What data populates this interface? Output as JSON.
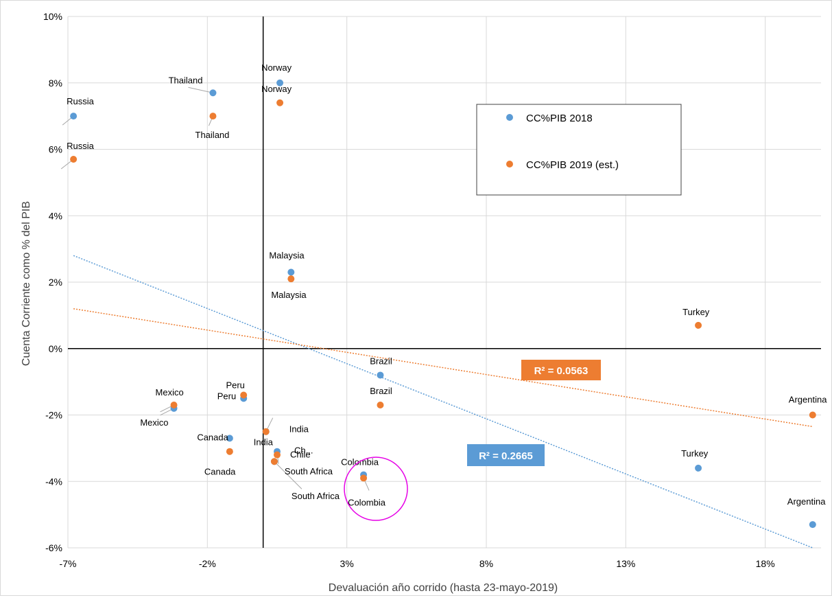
{
  "chart_data": {
    "type": "scatter",
    "xlabel": "Devaluación año corrido (hasta 23-mayo-2019)",
    "ylabel": "Cuenta Corriente como % del PIB",
    "xlim": [
      -7,
      20
    ],
    "ylim": [
      -6,
      10
    ],
    "x_ticks": [
      -7,
      -2,
      3,
      8,
      13,
      18
    ],
    "x_tick_labels": [
      "-7%",
      "-2%",
      "3%",
      "8%",
      "13%",
      "18%"
    ],
    "y_ticks": [
      -6,
      -4,
      -2,
      0,
      2,
      4,
      6,
      8,
      10
    ],
    "y_tick_labels": [
      "-6%",
      "-4%",
      "-2%",
      "0%",
      "2%",
      "4%",
      "6%",
      "8%",
      "10%"
    ],
    "grid": true,
    "legend_position": "top-right",
    "series": [
      {
        "name": "CC%PIB 2018",
        "color": "#5b9bd5",
        "points": [
          {
            "label": "Russia",
            "x": -6.8,
            "y": 7.0
          },
          {
            "label": "Thailand",
            "x": -1.8,
            "y": 7.7
          },
          {
            "label": "Norway",
            "x": 0.6,
            "y": 8.0
          },
          {
            "label": "Malaysia",
            "x": 1.0,
            "y": 2.3
          },
          {
            "label": "Mexico",
            "x": -3.2,
            "y": -1.8
          },
          {
            "label": "Peru",
            "x": -0.7,
            "y": -1.5
          },
          {
            "label": "India",
            "x": 0.1,
            "y": -2.5
          },
          {
            "label": "Canada",
            "x": -1.2,
            "y": -2.7
          },
          {
            "label": "Ch...",
            "x": 0.5,
            "y": -3.1
          },
          {
            "label": "South Africa",
            "x": 0.4,
            "y": -3.4
          },
          {
            "label": "Brazil",
            "x": 4.2,
            "y": -0.8
          },
          {
            "label": "Colombia",
            "x": 3.6,
            "y": -3.8
          },
          {
            "label": "Turkey",
            "x": 15.6,
            "y": -3.6
          },
          {
            "label": "Argentina",
            "x": 19.7,
            "y": -5.3
          }
        ]
      },
      {
        "name": "CC%PIB 2019 (est.)",
        "color": "#ed7d31",
        "points": [
          {
            "label": "Russia",
            "x": -6.8,
            "y": 5.7
          },
          {
            "label": "Thailand",
            "x": -1.8,
            "y": 7.0
          },
          {
            "label": "Norway",
            "x": 0.6,
            "y": 7.4
          },
          {
            "label": "Malaysia",
            "x": 1.0,
            "y": 2.1
          },
          {
            "label": "Mexico",
            "x": -3.2,
            "y": -1.7
          },
          {
            "label": "Peru",
            "x": -0.7,
            "y": -1.4
          },
          {
            "label": "India",
            "x": 0.1,
            "y": -2.5
          },
          {
            "label": "Canada",
            "x": -1.2,
            "y": -3.1
          },
          {
            "label": "Chile",
            "x": 0.5,
            "y": -3.2
          },
          {
            "label": "South Africa",
            "x": 0.4,
            "y": -3.4
          },
          {
            "label": "Brazil",
            "x": 4.2,
            "y": -1.7
          },
          {
            "label": "Colombia",
            "x": 3.6,
            "y": -3.9
          },
          {
            "label": "Turkey",
            "x": 15.6,
            "y": 0.7
          },
          {
            "label": "Argentina",
            "x": 19.7,
            "y": -2.0
          }
        ]
      }
    ],
    "trendlines": [
      {
        "series": "CC%PIB 2018",
        "color": "#5b9bd5",
        "x": [
          -6.8,
          19.7
        ],
        "y": [
          2.8,
          -6.0
        ],
        "r2_label": "R² = 0.2665"
      },
      {
        "series": "CC%PIB 2019 (est.)",
        "color": "#ed7d31",
        "x": [
          -6.8,
          19.7
        ],
        "y": [
          1.2,
          -2.35
        ],
        "r2_label": "R² = 0.0563"
      }
    ],
    "highlight": {
      "label": "Colombia",
      "color": "#e600e6"
    }
  }
}
